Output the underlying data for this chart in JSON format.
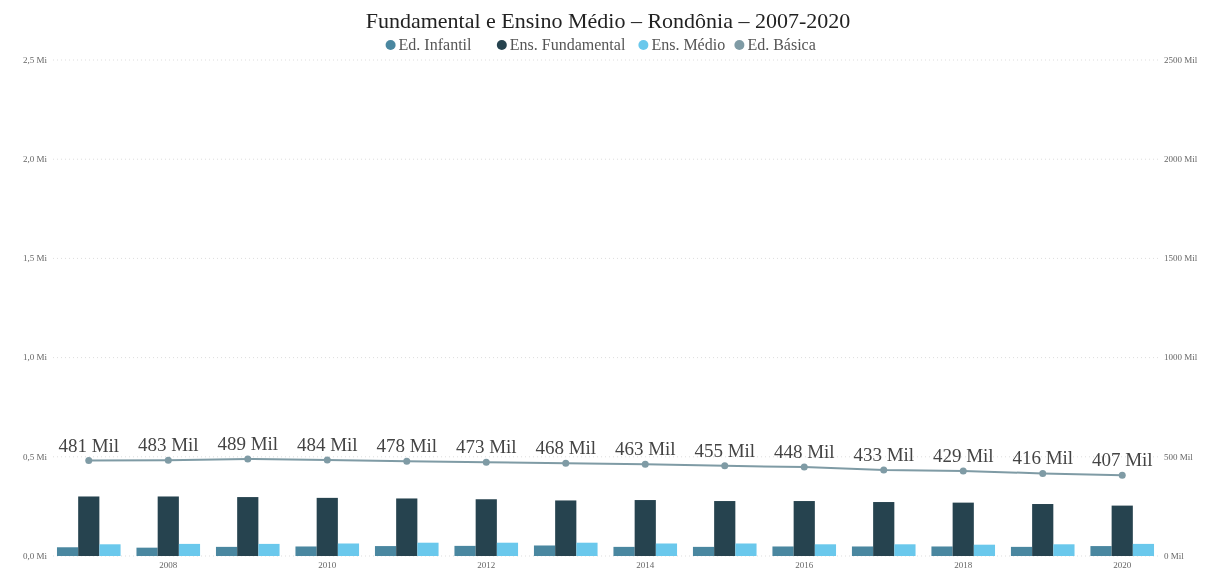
{
  "chart_data": {
    "type": "bar",
    "title": "Fundamental e Ensino Médio – Rondônia – 2007-2020",
    "categories": [
      null,
      "2008",
      null,
      "2010",
      null,
      "2012",
      null,
      "2014",
      null,
      "2016",
      null,
      "2018",
      null,
      "2020"
    ],
    "series": [
      {
        "name": "Ed. Infantil",
        "color": "#4a87a0",
        "values": [
          0.044,
          0.042,
          0.046,
          0.048,
          0.05,
          0.051,
          0.053,
          0.046,
          0.046,
          0.048,
          0.048,
          0.048,
          0.046,
          0.05
        ]
      },
      {
        "name": "Ens. Fundamental",
        "color": "#26434f",
        "values": [
          0.3,
          0.3,
          0.297,
          0.293,
          0.29,
          0.286,
          0.28,
          0.282,
          0.277,
          0.277,
          0.272,
          0.269,
          0.262,
          0.254
        ]
      },
      {
        "name": "Ens. Médio",
        "color": "#6ac8ec",
        "values": [
          0.059,
          0.061,
          0.061,
          0.063,
          0.067,
          0.067,
          0.067,
          0.063,
          0.063,
          0.059,
          0.059,
          0.057,
          0.059,
          0.061
        ]
      },
      {
        "name": "Ed. Básica",
        "color": "#7f9ba5",
        "type": "line",
        "axis": "y2",
        "marker": "circle",
        "values": [
          481,
          483,
          489,
          484,
          478,
          473,
          468,
          463,
          455,
          448,
          433,
          429,
          416,
          407
        ],
        "value_labels": [
          "481 Mil",
          "483 Mil",
          "489 Mil",
          "484 Mil",
          "478 Mil",
          "473 Mil",
          "468 Mil",
          "463 Mil",
          "455 Mil",
          "448 Mil",
          "433 Mil",
          "429 Mil",
          "416 Mil",
          "407 Mil"
        ]
      }
    ],
    "ylim": [
      0,
      2.5
    ],
    "yticks": [
      {
        "value": 0,
        "label": "0,0 Mi"
      },
      {
        "value": 0.5,
        "label": "0,5 Mi"
      },
      {
        "value": 1,
        "label": "1,0 Mi"
      },
      {
        "value": 1.5,
        "label": "1,5 Mi"
      },
      {
        "value": 2,
        "label": "2,0 Mi"
      },
      {
        "value": 2.5,
        "label": "2,5 Mi"
      }
    ],
    "y2lim": [
      0,
      2500
    ],
    "y2ticks": [
      {
        "value": 0,
        "label": "0 Mil"
      },
      {
        "value": 500,
        "label": "500 Mil"
      },
      {
        "value": 1000,
        "label": "1000 Mil"
      },
      {
        "value": 1500,
        "label": "1500 Mil"
      },
      {
        "value": 2000,
        "label": "2000 Mil"
      },
      {
        "value": 2500,
        "label": "2500 Mil"
      }
    ],
    "grid": "y",
    "legend": "top"
  }
}
